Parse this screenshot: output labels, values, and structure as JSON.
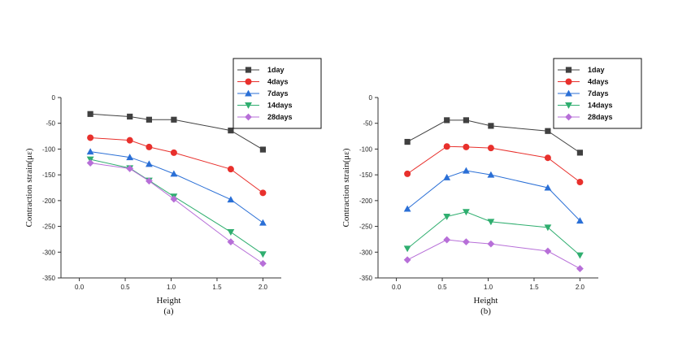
{
  "chart_data": [
    {
      "type": "line",
      "title": "",
      "panel_label": "(a)",
      "xlabel": "Height",
      "ylabel": "Contraction strain(με)",
      "xlim": [
        -0.2,
        2.2
      ],
      "ylim": [
        -350,
        0
      ],
      "x_ticks": [
        "0.0",
        "0.5",
        "1.0",
        "1.5",
        "2.0"
      ],
      "x_tick_values": [
        0,
        0.5,
        1.0,
        1.5,
        2.0
      ],
      "y_ticks": [
        "0",
        "-50",
        "-100",
        "-150",
        "-200",
        "-250",
        "-300",
        "-350"
      ],
      "y_tick_values": [
        0,
        -50,
        -100,
        -150,
        -200,
        -250,
        -300,
        -350
      ],
      "legend_position": "top-right",
      "x": [
        0.12,
        0.55,
        0.76,
        1.03,
        1.65,
        2.0
      ],
      "series": [
        {
          "name": "1day",
          "color": "#404040",
          "marker": "square",
          "values": [
            -32,
            -37,
            -43,
            -43,
            -64,
            -101
          ]
        },
        {
          "name": "4days",
          "color": "#e8302c",
          "marker": "circle",
          "values": [
            -78,
            -83,
            -96,
            -107,
            -139,
            -185
          ]
        },
        {
          "name": "7days",
          "color": "#2a6fd6",
          "marker": "triangle-up",
          "values": [
            -105,
            -116,
            -129,
            -148,
            -198,
            -243
          ]
        },
        {
          "name": "14days",
          "color": "#2fae6f",
          "marker": "triangle-down",
          "values": [
            -120,
            -137,
            -161,
            -192,
            -261,
            -304
          ]
        },
        {
          "name": "28days",
          "color": "#b76fd8",
          "marker": "diamond",
          "values": [
            -127,
            -138,
            -162,
            -197,
            -280,
            -322
          ]
        }
      ]
    },
    {
      "type": "line",
      "title": "",
      "panel_label": "(b)",
      "xlabel": "Height",
      "ylabel": "Contraction strain(με)",
      "xlim": [
        -0.2,
        2.2
      ],
      "ylim": [
        -350,
        0
      ],
      "x_ticks": [
        "0.0",
        "0.5",
        "1.0",
        "1.5",
        "2.0"
      ],
      "x_tick_values": [
        0,
        0.5,
        1.0,
        1.5,
        2.0
      ],
      "y_ticks": [
        "0",
        "-50",
        "-100",
        "-150",
        "-200",
        "-250",
        "-300",
        "-350"
      ],
      "y_tick_values": [
        0,
        -50,
        -100,
        -150,
        -200,
        -250,
        -300,
        -350
      ],
      "legend_position": "top-right",
      "x": [
        0.12,
        0.55,
        0.76,
        1.03,
        1.65,
        2.0
      ],
      "series": [
        {
          "name": "1day",
          "color": "#404040",
          "marker": "square",
          "values": [
            -86,
            -44,
            -44,
            -55,
            -65,
            -107
          ]
        },
        {
          "name": "4days",
          "color": "#e8302c",
          "marker": "circle",
          "values": [
            -148,
            -95,
            -96,
            -98,
            -117,
            -164
          ]
        },
        {
          "name": "7days",
          "color": "#2a6fd6",
          "marker": "triangle-up",
          "values": [
            -216,
            -155,
            -142,
            -150,
            -175,
            -239
          ]
        },
        {
          "name": "14days",
          "color": "#2fae6f",
          "marker": "triangle-down",
          "values": [
            -293,
            -231,
            -222,
            -241,
            -252,
            -306
          ]
        },
        {
          "name": "28days",
          "color": "#b76fd8",
          "marker": "diamond",
          "values": [
            -315,
            -276,
            -280,
            -284,
            -298,
            -332
          ]
        }
      ]
    }
  ]
}
